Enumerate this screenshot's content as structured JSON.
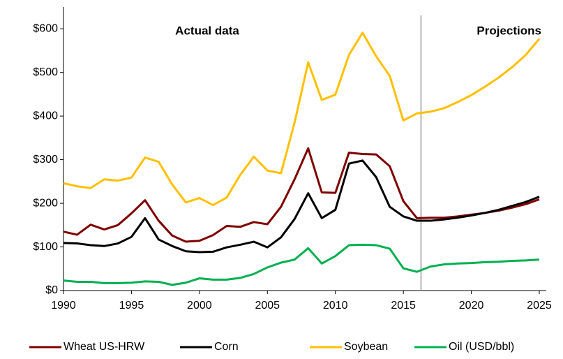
{
  "chart_data": {
    "type": "line",
    "annotations": [
      "Actual data",
      "Projections"
    ],
    "divider_x": 2016.3,
    "x": [
      1990,
      1991,
      1992,
      1993,
      1994,
      1995,
      1996,
      1997,
      1998,
      1999,
      2000,
      2001,
      2002,
      2003,
      2004,
      2005,
      2006,
      2007,
      2008,
      2009,
      2010,
      2011,
      2012,
      2013,
      2014,
      2015,
      2016,
      2017,
      2018,
      2019,
      2020,
      2021,
      2022,
      2023,
      2024,
      2025
    ],
    "series": [
      {
        "name": "Wheat US-HRW",
        "color": "#7f0000",
        "values": [
          135,
          128,
          151,
          140,
          150,
          177,
          207,
          160,
          126,
          112,
          114,
          127,
          148,
          146,
          157,
          152,
          192,
          255,
          326,
          225,
          224,
          316,
          313,
          312,
          285,
          205,
          166,
          167,
          167,
          170,
          174,
          178,
          183,
          190,
          198,
          209
        ]
      },
      {
        "name": "Corn",
        "color": "#000000",
        "values": [
          109,
          108,
          104,
          102,
          108,
          123,
          166,
          117,
          102,
          90,
          88,
          89,
          99,
          105,
          112,
          99,
          122,
          164,
          223,
          166,
          185,
          291,
          298,
          260,
          192,
          170,
          160,
          160,
          163,
          167,
          172,
          178,
          185,
          194,
          203,
          215
        ]
      },
      {
        "name": "Soybean",
        "color": "#ffc000",
        "values": [
          246,
          239,
          235,
          255,
          252,
          259,
          305,
          295,
          243,
          202,
          212,
          196,
          213,
          265,
          307,
          275,
          269,
          385,
          523,
          437,
          449,
          540,
          591,
          537,
          492,
          390,
          406,
          410,
          418,
          432,
          448,
          467,
          488,
          512,
          540,
          577
        ]
      },
      {
        "name": "Oil (USD/bbl)",
        "color": "#00b050",
        "values": [
          23,
          20,
          20,
          17,
          17,
          18,
          21,
          20,
          13,
          18,
          28,
          25,
          25,
          29,
          38,
          53,
          64,
          71,
          97,
          62,
          79,
          104,
          105,
          104,
          96,
          51,
          43,
          55,
          60,
          62,
          63,
          65,
          66,
          68,
          69,
          71
        ]
      }
    ],
    "xlim": [
      1990,
      2025.5
    ],
    "xticks": [
      1990,
      1995,
      2000,
      2005,
      2010,
      2015,
      2020,
      2025
    ],
    "ylim": [
      0,
      650
    ],
    "yticks": [
      {
        "value": 0,
        "label": "$0"
      },
      {
        "value": 100,
        "label": "$100"
      },
      {
        "value": 200,
        "label": "$200"
      },
      {
        "value": 300,
        "label": "$300"
      },
      {
        "value": 400,
        "label": "$400"
      },
      {
        "value": 500,
        "label": "$500"
      },
      {
        "value": 600,
        "label": "$600"
      }
    ],
    "legend": "bottom"
  }
}
